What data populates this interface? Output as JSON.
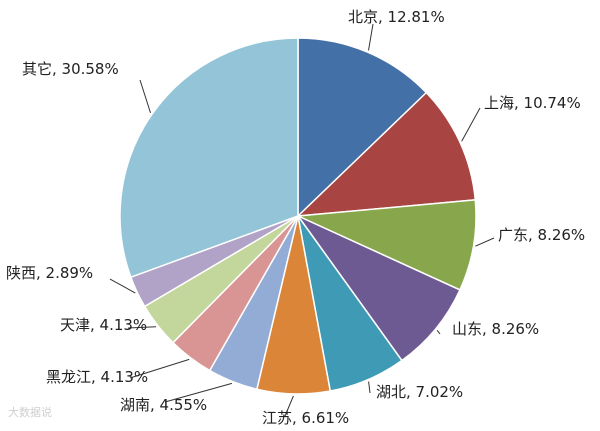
{
  "chart_data": {
    "type": "pie",
    "title": "",
    "slices": [
      {
        "name": "北京",
        "value": 12.81,
        "label": "北京, 12.81%",
        "color": "#4470a8"
      },
      {
        "name": "上海",
        "value": 10.74,
        "label": "上海, 10.74%",
        "color": "#a84543"
      },
      {
        "name": "广东",
        "value": 8.26,
        "label": "广东, 8.26%",
        "color": "#88a74c"
      },
      {
        "name": "山东",
        "value": 8.26,
        "label": "山东, 8.26%",
        "color": "#6e5a92"
      },
      {
        "name": "湖北",
        "value": 7.02,
        "label": "湖北, 7.02%",
        "color": "#3f9ab5"
      },
      {
        "name": "江苏",
        "value": 6.61,
        "label": "江苏, 6.61%",
        "color": "#db8539"
      },
      {
        "name": "湖南",
        "value": 4.55,
        "label": "湖南, 4.55%",
        "color": "#93acd6"
      },
      {
        "name": "黑龙江",
        "value": 4.13,
        "label": "黑龙江, 4.13%",
        "color": "#d99593"
      },
      {
        "name": "天津",
        "value": 4.13,
        "label": "天津, 4.13%",
        "color": "#c3d69c"
      },
      {
        "name": "陕西",
        "value": 2.89,
        "label": "陕西, 2.89%",
        "color": "#b1a2c8"
      },
      {
        "name": "其它",
        "value": 30.58,
        "label": "其它, 30.58%",
        "color": "#93c4d8"
      }
    ]
  },
  "watermark": "大数据说"
}
